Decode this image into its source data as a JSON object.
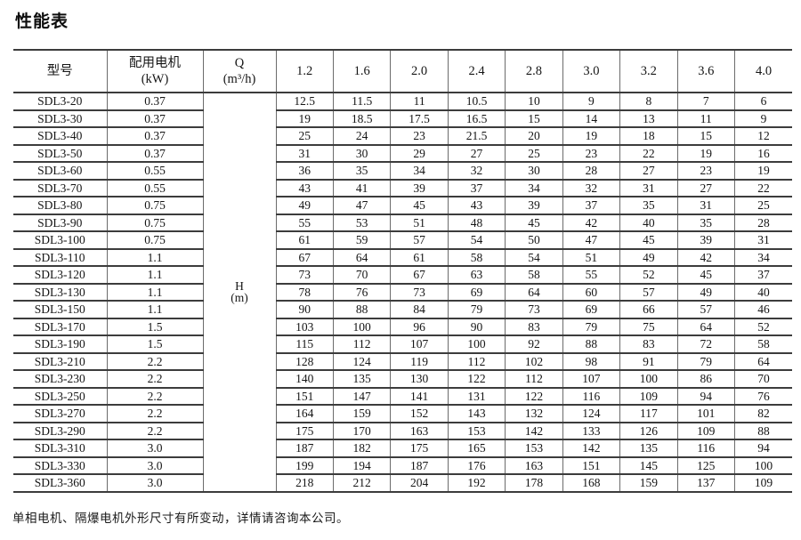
{
  "page": {
    "title": "性能表",
    "footnote": "单相电机、隔爆电机外形尺寸有所变动，详情请咨询本公司。"
  },
  "colors": {
    "background": "#ffffff",
    "text": "#151515",
    "border_horizontal": "#3c3c3c",
    "border_vertical": "#6b6b6b"
  },
  "table": {
    "headers": {
      "model": "型号",
      "motor_line1": "配用电机",
      "motor_line2": "(kW)",
      "q_line1": "Q",
      "q_line2": "(m³/h)",
      "h_line1": "H",
      "h_line2": "(m)"
    },
    "flow_columns": [
      "1.2",
      "1.6",
      "2.0",
      "2.4",
      "2.8",
      "3.0",
      "3.2",
      "3.6",
      "4.0"
    ],
    "rows": [
      {
        "model": "SDL3-20",
        "power": "0.37",
        "values": [
          "12.5",
          "11.5",
          "11",
          "10.5",
          "10",
          "9",
          "8",
          "7",
          "6"
        ]
      },
      {
        "model": "SDL3-30",
        "power": "0.37",
        "values": [
          "19",
          "18.5",
          "17.5",
          "16.5",
          "15",
          "14",
          "13",
          "11",
          "9"
        ]
      },
      {
        "model": "SDL3-40",
        "power": "0.37",
        "values": [
          "25",
          "24",
          "23",
          "21.5",
          "20",
          "19",
          "18",
          "15",
          "12"
        ]
      },
      {
        "model": "SDL3-50",
        "power": "0.37",
        "values": [
          "31",
          "30",
          "29",
          "27",
          "25",
          "23",
          "22",
          "19",
          "16"
        ]
      },
      {
        "model": "SDL3-60",
        "power": "0.55",
        "values": [
          "36",
          "35",
          "34",
          "32",
          "30",
          "28",
          "27",
          "23",
          "19"
        ]
      },
      {
        "model": "SDL3-70",
        "power": "0.55",
        "values": [
          "43",
          "41",
          "39",
          "37",
          "34",
          "32",
          "31",
          "27",
          "22"
        ]
      },
      {
        "model": "SDL3-80",
        "power": "0.75",
        "values": [
          "49",
          "47",
          "45",
          "43",
          "39",
          "37",
          "35",
          "31",
          "25"
        ]
      },
      {
        "model": "SDL3-90",
        "power": "0.75",
        "values": [
          "55",
          "53",
          "51",
          "48",
          "45",
          "42",
          "40",
          "35",
          "28"
        ]
      },
      {
        "model": "SDL3-100",
        "power": "0.75",
        "values": [
          "61",
          "59",
          "57",
          "54",
          "50",
          "47",
          "45",
          "39",
          "31"
        ]
      },
      {
        "model": "SDL3-110",
        "power": "1.1",
        "values": [
          "67",
          "64",
          "61",
          "58",
          "54",
          "51",
          "49",
          "42",
          "34"
        ]
      },
      {
        "model": "SDL3-120",
        "power": "1.1",
        "values": [
          "73",
          "70",
          "67",
          "63",
          "58",
          "55",
          "52",
          "45",
          "37"
        ]
      },
      {
        "model": "SDL3-130",
        "power": "1.1",
        "values": [
          "78",
          "76",
          "73",
          "69",
          "64",
          "60",
          "57",
          "49",
          "40"
        ]
      },
      {
        "model": "SDL3-150",
        "power": "1.1",
        "values": [
          "90",
          "88",
          "84",
          "79",
          "73",
          "69",
          "66",
          "57",
          "46"
        ]
      },
      {
        "model": "SDL3-170",
        "power": "1.5",
        "values": [
          "103",
          "100",
          "96",
          "90",
          "83",
          "79",
          "75",
          "64",
          "52"
        ]
      },
      {
        "model": "SDL3-190",
        "power": "1.5",
        "values": [
          "115",
          "112",
          "107",
          "100",
          "92",
          "88",
          "83",
          "72",
          "58"
        ]
      },
      {
        "model": "SDL3-210",
        "power": "2.2",
        "values": [
          "128",
          "124",
          "119",
          "112",
          "102",
          "98",
          "91",
          "79",
          "64"
        ]
      },
      {
        "model": "SDL3-230",
        "power": "2.2",
        "values": [
          "140",
          "135",
          "130",
          "122",
          "112",
          "107",
          "100",
          "86",
          "70"
        ]
      },
      {
        "model": "SDL3-250",
        "power": "2.2",
        "values": [
          "151",
          "147",
          "141",
          "131",
          "122",
          "116",
          "109",
          "94",
          "76"
        ]
      },
      {
        "model": "SDL3-270",
        "power": "2.2",
        "values": [
          "164",
          "159",
          "152",
          "143",
          "132",
          "124",
          "117",
          "101",
          "82"
        ]
      },
      {
        "model": "SDL3-290",
        "power": "2.2",
        "values": [
          "175",
          "170",
          "163",
          "153",
          "142",
          "133",
          "126",
          "109",
          "88"
        ]
      },
      {
        "model": "SDL3-310",
        "power": "3.0",
        "values": [
          "187",
          "182",
          "175",
          "165",
          "153",
          "142",
          "135",
          "116",
          "94"
        ]
      },
      {
        "model": "SDL3-330",
        "power": "3.0",
        "values": [
          "199",
          "194",
          "187",
          "176",
          "163",
          "151",
          "145",
          "125",
          "100"
        ]
      },
      {
        "model": "SDL3-360",
        "power": "3.0",
        "values": [
          "218",
          "212",
          "204",
          "192",
          "178",
          "168",
          "159",
          "137",
          "109"
        ]
      }
    ]
  }
}
